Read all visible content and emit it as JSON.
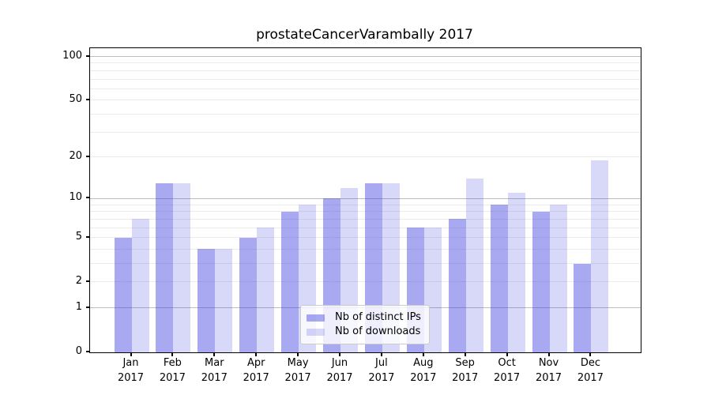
{
  "chart_data": {
    "type": "bar",
    "title": "prostateCancerVarambally 2017",
    "categories": [
      "Jan",
      "Feb",
      "Mar",
      "Apr",
      "May",
      "Jun",
      "Jul",
      "Aug",
      "Sep",
      "Oct",
      "Nov",
      "Dec"
    ],
    "year_label": "2017",
    "series": [
      {
        "name": "Nb of distinct IPs",
        "color": "rgba(60,60,225,0.44)",
        "blended_hex": "#a9a9f2",
        "values": [
          5,
          13,
          4,
          5,
          8,
          10,
          13,
          6,
          7,
          9,
          8,
          3
        ]
      },
      {
        "name": "Nb of downloads",
        "color": "rgba(60,60,225,0.20)",
        "blended_hex": "#d8d8f7",
        "values": [
          7,
          13,
          4,
          6,
          9,
          12,
          13,
          6,
          14,
          11,
          9,
          19
        ]
      }
    ],
    "xlabel": "",
    "ylabel": "",
    "yscale": "log1p",
    "ylim": [
      0,
      114
    ],
    "yticks": [
      0,
      1,
      2,
      5,
      10,
      20,
      50,
      100
    ],
    "major_gridline_values": [
      1,
      10,
      100
    ],
    "minor_gridline_values": [
      2,
      3,
      4,
      5,
      6,
      7,
      8,
      9,
      20,
      30,
      40,
      50,
      60,
      70,
      80,
      90
    ],
    "grid": true,
    "legend_position": "lower center",
    "colors": {
      "major_grid": "#bdbdbd",
      "minor_grid": "#ebebeb",
      "spine": "#000000",
      "background": "#ffffff",
      "text": "#000000"
    }
  }
}
